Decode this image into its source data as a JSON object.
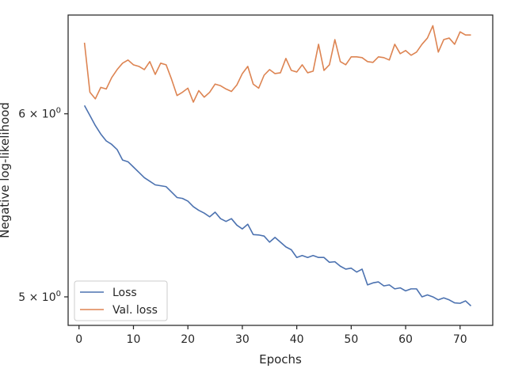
{
  "chart_data": {
    "type": "line",
    "xlabel": "Epochs",
    "ylabel": "Negative log-likelihood",
    "yscale": "log",
    "xlim": [
      -2,
      76
    ],
    "ylim": [
      4.86,
      6.62
    ],
    "x_ticks": [
      0,
      10,
      20,
      30,
      40,
      50,
      60,
      70
    ],
    "y_ticks": [
      {
        "value": 5,
        "base": "5",
        "sup": "0"
      },
      {
        "value": 6,
        "base": "6",
        "sup": "0"
      }
    ],
    "grid": false,
    "legend_position": "lower-left",
    "x": [
      1,
      2,
      3,
      4,
      5,
      6,
      7,
      8,
      9,
      10,
      11,
      12,
      13,
      14,
      15,
      16,
      17,
      18,
      19,
      20,
      21,
      22,
      23,
      24,
      25,
      26,
      27,
      28,
      29,
      30,
      31,
      32,
      33,
      34,
      35,
      36,
      37,
      38,
      39,
      40,
      41,
      42,
      43,
      44,
      45,
      46,
      47,
      48,
      49,
      50,
      51,
      52,
      53,
      54,
      55,
      56,
      57,
      58,
      59,
      60,
      61,
      62,
      63,
      64,
      65,
      66,
      67,
      68,
      69,
      70,
      71,
      72
    ],
    "series": [
      {
        "name": "Loss",
        "color": "#4c72b0",
        "values": [
          6.05,
          5.99,
          5.93,
          5.88,
          5.84,
          5.82,
          5.79,
          5.73,
          5.72,
          5.69,
          5.66,
          5.63,
          5.61,
          5.59,
          5.585,
          5.58,
          5.55,
          5.52,
          5.515,
          5.5,
          5.47,
          5.45,
          5.435,
          5.415,
          5.44,
          5.405,
          5.39,
          5.405,
          5.37,
          5.35,
          5.375,
          5.32,
          5.318,
          5.312,
          5.28,
          5.305,
          5.28,
          5.255,
          5.24,
          5.2,
          5.21,
          5.2,
          5.21,
          5.2,
          5.2,
          5.175,
          5.178,
          5.155,
          5.14,
          5.145,
          5.125,
          5.14,
          5.06,
          5.07,
          5.075,
          5.055,
          5.06,
          5.04,
          5.045,
          5.03,
          5.04,
          5.04,
          5.0,
          5.01,
          5.0,
          4.985,
          4.995,
          4.985,
          4.97,
          4.968,
          4.98,
          4.955
        ]
      },
      {
        "name": "Val. loss",
        "color": "#dd8452",
        "values": [
          6.44,
          6.13,
          6.09,
          6.16,
          6.15,
          6.22,
          6.27,
          6.31,
          6.33,
          6.3,
          6.29,
          6.27,
          6.32,
          6.24,
          6.31,
          6.3,
          6.21,
          6.11,
          6.13,
          6.155,
          6.07,
          6.14,
          6.1,
          6.13,
          6.18,
          6.17,
          6.15,
          6.135,
          6.175,
          6.245,
          6.29,
          6.18,
          6.155,
          6.235,
          6.27,
          6.245,
          6.25,
          6.34,
          6.265,
          6.255,
          6.3,
          6.25,
          6.26,
          6.43,
          6.265,
          6.3,
          6.46,
          6.32,
          6.3,
          6.35,
          6.35,
          6.345,
          6.32,
          6.315,
          6.35,
          6.345,
          6.33,
          6.43,
          6.37,
          6.39,
          6.36,
          6.38,
          6.43,
          6.47,
          6.55,
          6.38,
          6.46,
          6.47,
          6.43,
          6.51,
          6.49,
          6.49
        ]
      }
    ]
  }
}
